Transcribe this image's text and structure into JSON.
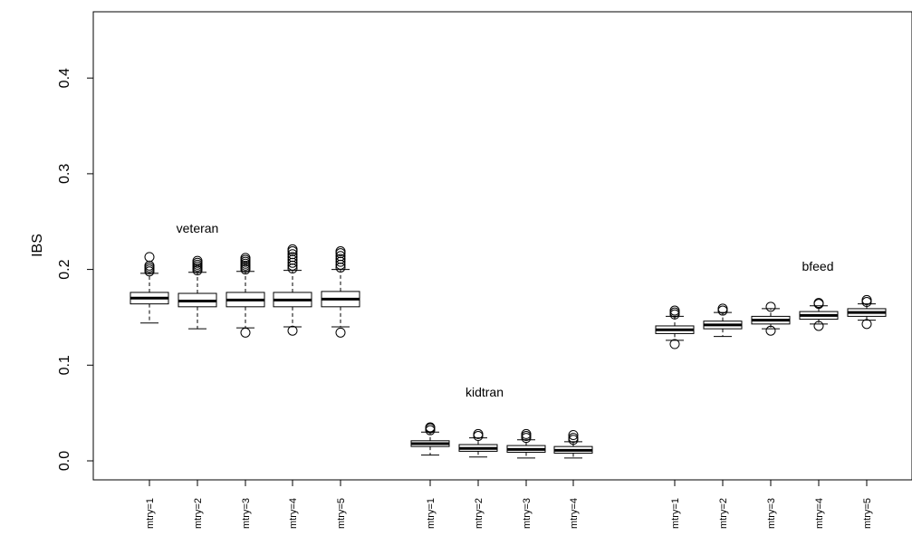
{
  "chart_data": {
    "type": "boxplot",
    "ylabel": "IBS",
    "ylim": [
      -0.01,
      0.47
    ],
    "yticks": [
      {
        "value": 0.0,
        "label": "0.0"
      },
      {
        "value": 0.1,
        "label": "0.1"
      },
      {
        "value": 0.2,
        "label": "0.2"
      },
      {
        "value": 0.3,
        "label": "0.3"
      },
      {
        "value": 0.4,
        "label": "0.4"
      }
    ],
    "groups": [
      {
        "label": "veteran",
        "boxes": [
          {
            "label": "mtry=1",
            "q1": 0.164,
            "median": 0.17,
            "q3": 0.176,
            "whisker_low": 0.144,
            "whisker_high": 0.196,
            "outliers": [
              0.198,
              0.2,
              0.202,
              0.204,
              0.213
            ]
          },
          {
            "label": "mtry=2",
            "q1": 0.161,
            "median": 0.167,
            "q3": 0.175,
            "whisker_low": 0.138,
            "whisker_high": 0.197,
            "outliers": [
              0.199,
              0.201,
              0.203,
              0.205,
              0.207,
              0.209
            ]
          },
          {
            "label": "mtry=3",
            "q1": 0.161,
            "median": 0.168,
            "q3": 0.176,
            "whisker_low": 0.139,
            "whisker_high": 0.198,
            "outliers": [
              0.134,
              0.2,
              0.202,
              0.204,
              0.206,
              0.208,
              0.21,
              0.212
            ]
          },
          {
            "label": "mtry=4",
            "q1": 0.161,
            "median": 0.168,
            "q3": 0.176,
            "whisker_low": 0.14,
            "whisker_high": 0.199,
            "outliers": [
              0.136,
              0.201,
              0.204,
              0.207,
              0.21,
              0.213,
              0.216,
              0.219,
              0.221
            ]
          },
          {
            "label": "mtry=5",
            "q1": 0.161,
            "median": 0.169,
            "q3": 0.177,
            "whisker_low": 0.14,
            "whisker_high": 0.2,
            "outliers": [
              0.134,
              0.202,
              0.205,
              0.208,
              0.211,
              0.214,
              0.217,
              0.219
            ]
          }
        ]
      },
      {
        "label": "kidtran",
        "boxes": [
          {
            "label": "mtry=1",
            "q1": 0.015,
            "median": 0.018,
            "q3": 0.021,
            "whisker_low": 0.006,
            "whisker_high": 0.03,
            "outliers": [
              0.032,
              0.034,
              0.035
            ]
          },
          {
            "label": "mtry=2",
            "q1": 0.01,
            "median": 0.013,
            "q3": 0.017,
            "whisker_low": 0.004,
            "whisker_high": 0.024,
            "outliers": [
              0.026,
              0.028
            ]
          },
          {
            "label": "mtry=3",
            "q1": 0.009,
            "median": 0.012,
            "q3": 0.016,
            "whisker_low": 0.003,
            "whisker_high": 0.022,
            "outliers": [
              0.024,
              0.026,
              0.028
            ]
          },
          {
            "label": "mtry=4",
            "q1": 0.008,
            "median": 0.011,
            "q3": 0.015,
            "whisker_low": 0.003,
            "whisker_high": 0.02,
            "outliers": [
              0.022,
              0.024,
              0.027
            ]
          }
        ]
      },
      {
        "label": "bfeed",
        "boxes": [
          {
            "label": "mtry=1",
            "q1": 0.133,
            "median": 0.137,
            "q3": 0.141,
            "whisker_low": 0.126,
            "whisker_high": 0.151,
            "outliers": [
              0.122,
              0.153,
              0.155,
              0.157
            ]
          },
          {
            "label": "mtry=2",
            "q1": 0.138,
            "median": 0.142,
            "q3": 0.146,
            "whisker_low": 0.13,
            "whisker_high": 0.155,
            "outliers": [
              0.157,
              0.159
            ]
          },
          {
            "label": "mtry=3",
            "q1": 0.143,
            "median": 0.147,
            "q3": 0.151,
            "whisker_low": 0.138,
            "whisker_high": 0.159,
            "outliers": [
              0.136,
              0.161
            ]
          },
          {
            "label": "mtry=4",
            "q1": 0.148,
            "median": 0.152,
            "q3": 0.156,
            "whisker_low": 0.143,
            "whisker_high": 0.162,
            "outliers": [
              0.141,
              0.164,
              0.165
            ]
          },
          {
            "label": "mtry=5",
            "q1": 0.151,
            "median": 0.155,
            "q3": 0.159,
            "whisker_low": 0.147,
            "whisker_high": 0.164,
            "outliers": [
              0.143,
              0.166,
              0.168
            ]
          }
        ]
      }
    ]
  }
}
